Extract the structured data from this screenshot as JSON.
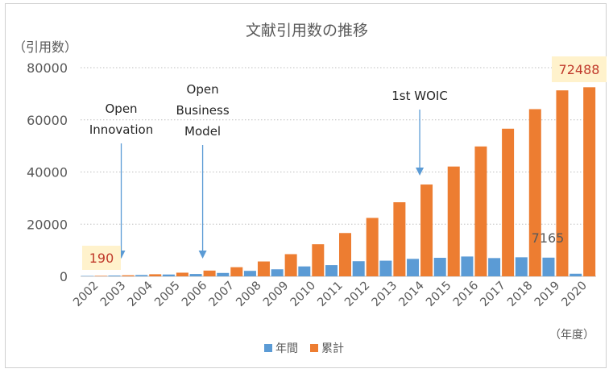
{
  "chart_data": {
    "type": "bar",
    "title": "文献引用数の推移",
    "ylabel": "（引用数）",
    "xlabel": "（年度）",
    "ylim": [
      0,
      80000
    ],
    "yticks": [
      "0",
      "20000",
      "40000",
      "60000",
      "80000"
    ],
    "categories": [
      "2002",
      "2003",
      "2004",
      "2005",
      "2006",
      "2007",
      "2008",
      "2009",
      "2010",
      "2011",
      "2012",
      "2013",
      "2014",
      "2015",
      "2016",
      "2017",
      "2018",
      "2019",
      "2020"
    ],
    "series": [
      {
        "name": "年間",
        "color": "#5b9bd5",
        "values": [
          150,
          300,
          500,
          700,
          900,
          1300,
          2100,
          2700,
          3800,
          4300,
          5800,
          6000,
          6700,
          7100,
          7600,
          7000,
          7300,
          7165,
          1000
        ]
      },
      {
        "name": "累計",
        "color": "#ed7d31",
        "values": [
          190,
          400,
          800,
          1400,
          2200,
          3500,
          5700,
          8500,
          12300,
          16600,
          22400,
          28400,
          35200,
          42100,
          49800,
          56600,
          64100,
          71300,
          72488
        ]
      }
    ],
    "data_labels": {
      "first_cumulative": "190",
      "last_cumulative": "72488",
      "annual_2019": "7165"
    },
    "annotations": [
      {
        "lines": [
          "Open",
          "Innovation"
        ],
        "year": "2003"
      },
      {
        "lines": [
          "Open",
          "Business",
          "Model"
        ],
        "year": "2006"
      },
      {
        "lines": [
          "1st WOIC"
        ],
        "year": "2014"
      }
    ],
    "grid": true,
    "legend_position": "bottom"
  }
}
